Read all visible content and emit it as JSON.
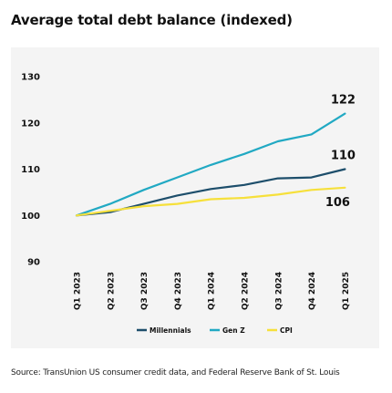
{
  "header": {
    "title": "Average total debt balance (indexed)"
  },
  "footer": {
    "source": "Source: TransUnion US consumer credit data, and Federal Reserve Bank of St. Louis"
  },
  "chart_data": {
    "type": "line",
    "title": "Average total debt balance (indexed)",
    "xlabel": "",
    "ylabel": "",
    "ylim": [
      90,
      130
    ],
    "yticks": [
      90,
      100,
      110,
      120,
      130
    ],
    "grid": false,
    "legend_position": "bottom",
    "categories": [
      "Q1 2023",
      "Q2 2023",
      "Q3 2023",
      "Q4 2023",
      "Q1 2024",
      "Q2 2024",
      "Q3 2024",
      "Q4 2024",
      "Q1 2025"
    ],
    "series": [
      {
        "name": "Millennials",
        "color": "#1d4e6b",
        "values": [
          100,
          100.7,
          102.5,
          104.3,
          105.7,
          106.6,
          108.0,
          108.2,
          110.0
        ]
      },
      {
        "name": "Gen Z",
        "color": "#21a9c3",
        "values": [
          100,
          102.5,
          105.5,
          108.2,
          110.9,
          113.3,
          116.0,
          117.5,
          122.0
        ]
      },
      {
        "name": "CPI",
        "color": "#f6e03b",
        "values": [
          100,
          101.0,
          102.0,
          102.5,
          103.5,
          103.8,
          104.5,
          105.5,
          106.0
        ]
      }
    ],
    "end_labels": [
      "110",
      "122",
      "106"
    ]
  }
}
